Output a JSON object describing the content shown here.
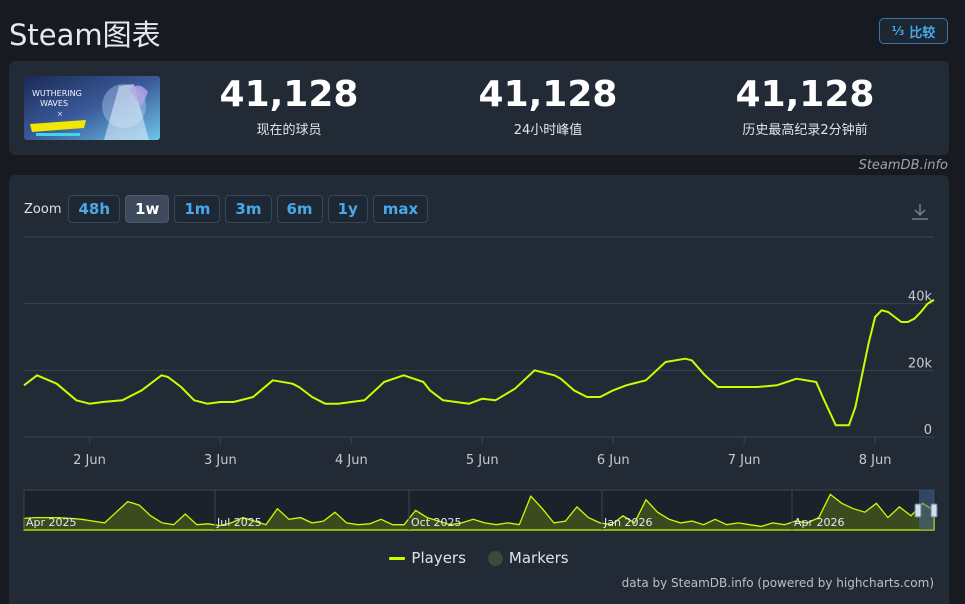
{
  "page": {
    "title": "Steam图表",
    "compare_label": "比较",
    "compare_icon": "sort-numeric-icon"
  },
  "stats": [
    {
      "value": "41,128",
      "label": "现在的球员"
    },
    {
      "value": "41,128",
      "label": "24小时峰值"
    },
    {
      "value": "41,128",
      "label": "历史最高纪录2分钟前"
    }
  ],
  "game_image": {
    "alt_text": [
      "WUTHERING",
      "WAVES",
      "×"
    ]
  },
  "source_note": "SteamDB.info",
  "zoom": {
    "label": "Zoom",
    "options": [
      "48h",
      "1w",
      "1m",
      "3m",
      "6m",
      "1y",
      "max"
    ],
    "active": "1w"
  },
  "colors": {
    "series": "#c6ff00",
    "grid": "#3a4452",
    "markers": "#3c4a38",
    "background": "#222a36"
  },
  "chart_data": {
    "type": "line",
    "xlabel": "",
    "ylabel": "",
    "x_ticks": [
      "2 Jun",
      "3 Jun",
      "4 Jun",
      "5 Jun",
      "6 Jun",
      "7 Jun",
      "8 Jun"
    ],
    "x_range_days": [
      1.5,
      8.45
    ],
    "y_ticks": [
      "0",
      "20k",
      "40k"
    ],
    "ylim": [
      0,
      60000
    ],
    "grid": true,
    "legend": "bottom-center",
    "series": [
      {
        "name": "Players",
        "x": [
          1.5,
          1.6,
          1.75,
          1.9,
          2.0,
          2.1,
          2.25,
          2.4,
          2.55,
          2.6,
          2.7,
          2.8,
          2.9,
          3.0,
          3.1,
          3.25,
          3.4,
          3.55,
          3.6,
          3.7,
          3.8,
          3.9,
          4.0,
          4.1,
          4.25,
          4.4,
          4.55,
          4.6,
          4.7,
          4.8,
          4.9,
          5.0,
          5.1,
          5.25,
          5.4,
          5.55,
          5.6,
          5.7,
          5.8,
          5.9,
          6.0,
          6.1,
          6.25,
          6.4,
          6.55,
          6.6,
          6.7,
          6.8,
          6.9,
          7.0,
          7.1,
          7.25,
          7.4,
          7.55,
          7.6,
          7.7,
          7.8,
          7.85,
          7.95,
          8.0,
          8.05,
          8.1,
          8.15,
          8.2,
          8.25,
          8.3,
          8.35,
          8.4,
          8.45
        ],
        "y": [
          15500,
          18500,
          16000,
          11000,
          10000,
          10500,
          11000,
          14000,
          18500,
          18000,
          15000,
          11000,
          10000,
          10500,
          10500,
          12000,
          17000,
          16000,
          15000,
          12000,
          10000,
          10000,
          10500,
          11000,
          16500,
          18500,
          16500,
          14000,
          11000,
          10500,
          10000,
          11500,
          11000,
          14500,
          20000,
          18500,
          17500,
          14000,
          12000,
          12000,
          14000,
          15500,
          17000,
          22500,
          23500,
          23000,
          18500,
          15000,
          15000,
          15000,
          15000,
          15500,
          17500,
          16500,
          12000,
          3500,
          3500,
          9000,
          28000,
          36000,
          38000,
          37500,
          36000,
          34500,
          34500,
          35500,
          37500,
          40000,
          41128
        ]
      },
      {
        "name": "Markers",
        "values": []
      }
    ],
    "navigator": {
      "ticks": [
        "Apr 2025",
        "Jul 2025",
        "Oct 2025",
        "Jan 2026",
        "Apr 2026"
      ],
      "values": [
        13,
        14,
        14,
        14,
        13,
        12,
        10,
        8,
        20,
        32,
        28,
        16,
        8,
        6,
        18,
        6,
        7,
        5,
        8,
        14,
        10,
        6,
        24,
        12,
        14,
        8,
        10,
        20,
        8,
        6,
        7,
        12,
        6,
        6,
        22,
        14,
        10,
        6,
        8,
        12,
        8,
        6,
        8,
        6,
        38,
        24,
        8,
        10,
        26,
        14,
        8,
        6,
        16,
        8,
        34,
        20,
        12,
        8,
        10,
        6,
        12,
        6,
        8,
        6,
        4,
        8,
        6,
        10,
        8,
        14,
        40,
        30,
        24,
        20,
        30,
        14,
        26,
        16,
        30,
        22
      ]
    }
  },
  "legend": {
    "players": "Players",
    "markers": "Markers"
  },
  "credits": "data by SteamDB.info (powered by highcharts.com)"
}
